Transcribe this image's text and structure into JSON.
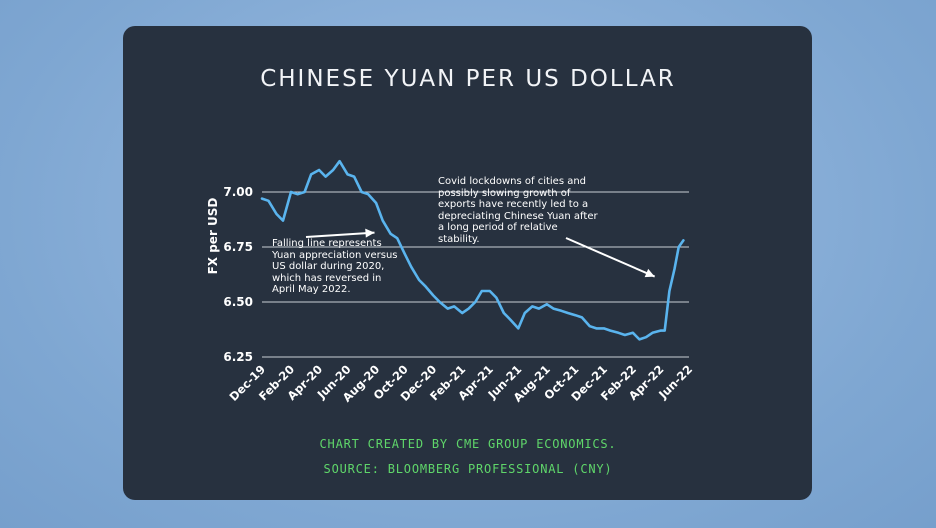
{
  "chart_data": {
    "type": "line",
    "title": "CHINESE YUAN PER US DOLLAR",
    "ylabel": "FX per USD",
    "xlabel": "",
    "ylim": [
      6.25,
      7.25
    ],
    "yticks": [
      6.25,
      6.5,
      6.75,
      7.0
    ],
    "ytick_labels": [
      "6.25",
      "6.50",
      "6.75",
      "7.00"
    ],
    "xlim": [
      "2019-12-01",
      "2022-06-01"
    ],
    "xtick_dates": [
      "2019-12-01",
      "2020-02-01",
      "2020-04-01",
      "2020-06-01",
      "2020-08-01",
      "2020-10-01",
      "2020-12-01",
      "2021-02-01",
      "2021-04-01",
      "2021-06-01",
      "2021-08-01",
      "2021-10-01",
      "2021-12-01",
      "2022-02-01",
      "2022-04-01",
      "2022-06-01"
    ],
    "xtick_labels": [
      "Dec-19",
      "Feb-20",
      "Apr-20",
      "Jun-20",
      "Aug-20",
      "Oct-20",
      "Dec-20",
      "Feb-21",
      "Apr-21",
      "Jun-21",
      "Aug-21",
      "Oct-21",
      "Dec-21",
      "Feb-22",
      "Apr-22",
      "Jun-22"
    ],
    "grid": "horizontal",
    "line_color": "#5ab4ee",
    "series": [
      {
        "x": [
          "2019-12-01",
          "2019-12-15",
          "2020-01-01",
          "2020-01-15",
          "2020-02-01",
          "2020-02-15",
          "2020-03-01",
          "2020-03-15",
          "2020-04-01",
          "2020-04-15",
          "2020-05-01",
          "2020-05-15",
          "2020-06-01",
          "2020-06-15",
          "2020-07-01",
          "2020-07-15",
          "2020-08-01",
          "2020-08-15",
          "2020-09-01",
          "2020-09-15",
          "2020-10-01",
          "2020-10-15",
          "2020-11-01",
          "2020-11-15",
          "2020-12-01",
          "2020-12-15",
          "2021-01-01",
          "2021-01-15",
          "2021-02-01",
          "2021-02-15",
          "2021-03-01",
          "2021-03-15",
          "2021-04-01",
          "2021-04-15",
          "2021-05-01",
          "2021-05-15",
          "2021-06-01",
          "2021-06-15",
          "2021-07-01",
          "2021-07-15",
          "2021-08-01",
          "2021-08-15",
          "2021-09-01",
          "2021-09-15",
          "2021-10-01",
          "2021-10-15",
          "2021-11-01",
          "2021-11-15",
          "2021-12-01",
          "2021-12-15",
          "2022-01-01",
          "2022-01-15",
          "2022-02-01",
          "2022-02-15",
          "2022-03-01",
          "2022-03-15",
          "2022-04-01",
          "2022-04-10",
          "2022-04-20",
          "2022-05-01",
          "2022-05-10",
          "2022-05-20"
        ],
        "y": [
          6.97,
          6.96,
          6.9,
          6.87,
          7.0,
          6.99,
          7.0,
          7.08,
          7.1,
          7.07,
          7.1,
          7.14,
          7.08,
          7.07,
          7.0,
          6.99,
          6.95,
          6.87,
          6.81,
          6.79,
          6.72,
          6.66,
          6.6,
          6.57,
          6.53,
          6.5,
          6.47,
          6.48,
          6.45,
          6.47,
          6.5,
          6.55,
          6.55,
          6.52,
          6.45,
          6.42,
          6.38,
          6.45,
          6.48,
          6.47,
          6.49,
          6.47,
          6.46,
          6.45,
          6.44,
          6.43,
          6.39,
          6.38,
          6.38,
          6.37,
          6.36,
          6.35,
          6.36,
          6.33,
          6.34,
          6.36,
          6.37,
          6.37,
          6.55,
          6.65,
          6.75,
          6.78
        ]
      }
    ],
    "annotations": [
      {
        "text": "Falling line represents Yuan appreciation versus US dollar during 2020, which has reversed in April May 2022.",
        "points_to": {
          "x": "2020-07-20",
          "y": 6.82
        }
      },
      {
        "text": "Covid lockdowns of cities and possibly slowing growth of exports have recently led to a depreciating Chinese Yuan after a long period of relative stability.",
        "points_to": {
          "x": "2022-04-10",
          "y": 6.62
        }
      }
    ]
  },
  "footer": {
    "line1": "CHART CREATED BY CME GROUP ECONOMICS.",
    "line2": "SOURCE: BLOOMBERG PROFESSIONAL (CNY)"
  }
}
